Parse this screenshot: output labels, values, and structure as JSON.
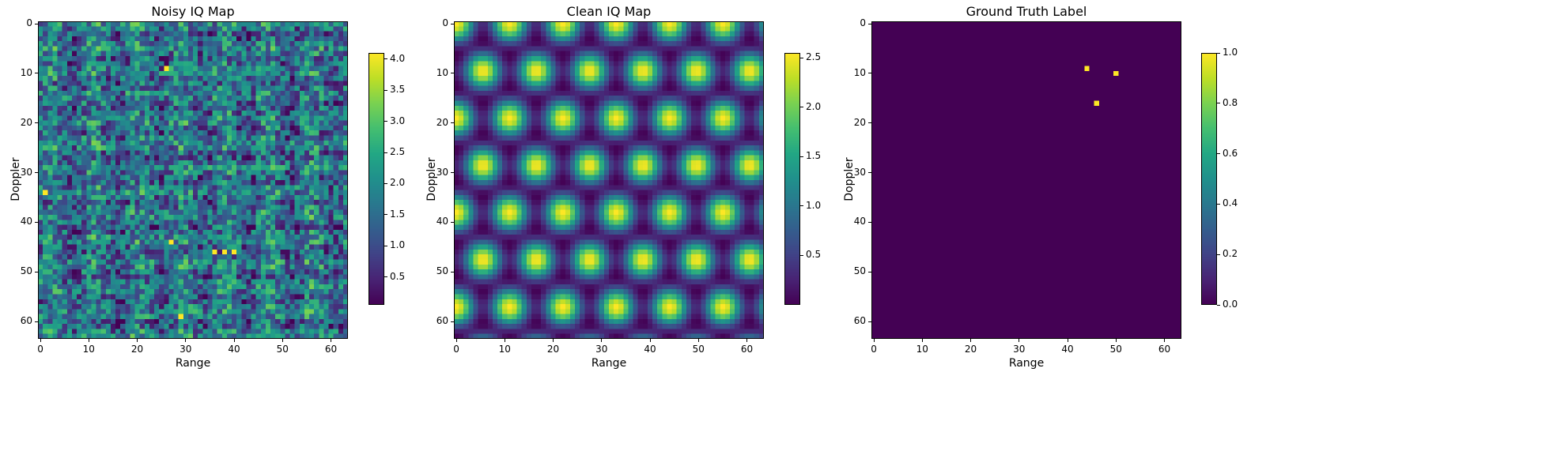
{
  "colormap": "viridis",
  "chart_data": [
    {
      "type": "heatmap",
      "title": "Noisy IQ Map",
      "xlabel": "Range",
      "ylabel": "Doppler",
      "grid_size": [
        64,
        64
      ],
      "xticks": [
        0,
        10,
        20,
        30,
        40,
        50,
        60
      ],
      "yticks": [
        0,
        10,
        20,
        30,
        40,
        50,
        60
      ],
      "value_range": [
        0.05,
        4.1
      ],
      "colorbar_ticks": [
        0.5,
        1.0,
        1.5,
        2.0,
        2.5,
        3.0,
        3.5,
        4.0
      ],
      "colorbar_labels": [
        "0.5",
        "1.0",
        "1.5",
        "2.0",
        "2.5",
        "3.0",
        "3.5",
        "4.0"
      ],
      "pattern": "noise",
      "bright_points": [
        [
          36,
          46
        ],
        [
          38,
          46
        ],
        [
          40,
          46
        ],
        [
          27,
          44
        ],
        [
          1,
          34
        ],
        [
          26,
          9
        ],
        [
          29,
          59
        ]
      ]
    },
    {
      "type": "heatmap",
      "title": "Clean IQ Map",
      "xlabel": "Range",
      "ylabel": "Doppler",
      "grid_size": [
        64,
        64
      ],
      "xticks": [
        0,
        10,
        20,
        30,
        40,
        50,
        60
      ],
      "yticks": [
        0,
        10,
        20,
        30,
        40,
        50,
        60
      ],
      "value_range": [
        0.0,
        2.55
      ],
      "colorbar_ticks": [
        0.5,
        1.0,
        1.5,
        2.0,
        2.5
      ],
      "colorbar_labels": [
        "0.5",
        "1.0",
        "1.5",
        "2.0",
        "2.5"
      ],
      "pattern": "periodic-blobs"
    },
    {
      "type": "heatmap",
      "title": "Ground Truth Label",
      "xlabel": "Range",
      "ylabel": "Doppler",
      "grid_size": [
        64,
        64
      ],
      "xticks": [
        0,
        10,
        20,
        30,
        40,
        50,
        60
      ],
      "yticks": [
        0,
        10,
        20,
        30,
        40,
        50,
        60
      ],
      "value_range": [
        0.0,
        1.0
      ],
      "colorbar_ticks": [
        0.0,
        0.2,
        0.4,
        0.6,
        0.8,
        1.0
      ],
      "colorbar_labels": [
        "0.0",
        "0.2",
        "0.4",
        "0.6",
        "0.8",
        "1.0"
      ],
      "pattern": "labels",
      "targets": [
        [
          44,
          9
        ],
        [
          50,
          10
        ],
        [
          46,
          16
        ]
      ]
    }
  ]
}
